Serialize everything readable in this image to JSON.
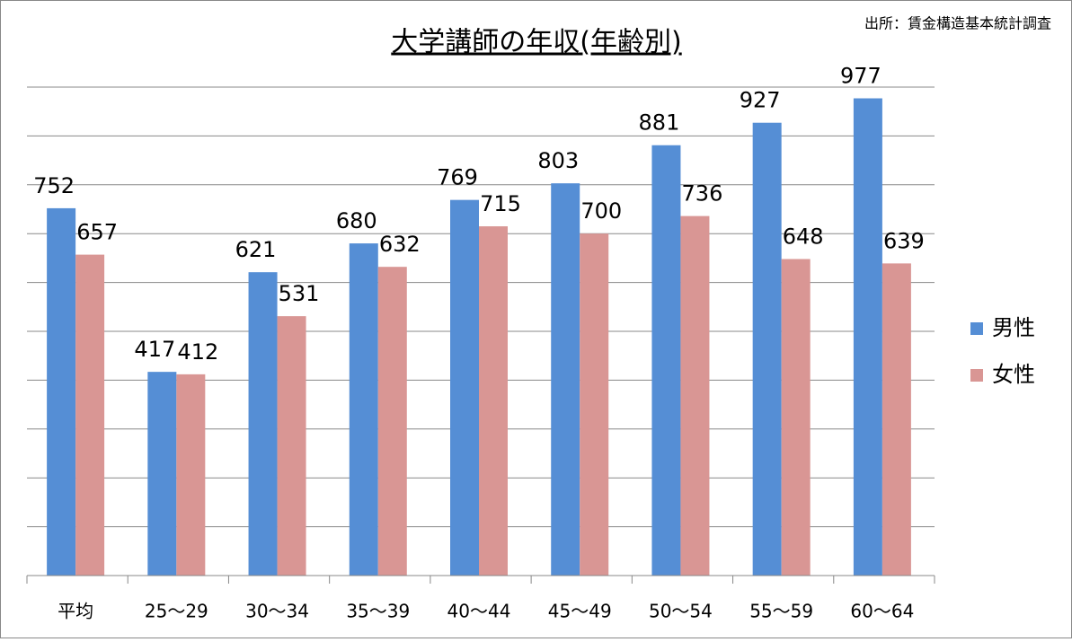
{
  "chart_data": {
    "type": "bar",
    "title": "大学講師の年収(年齢別)",
    "source": "出所：賃金構造基本統計調査",
    "categories": [
      "平均",
      "25〜29",
      "30〜34",
      "35〜39",
      "40〜44",
      "45〜49",
      "50〜54",
      "55〜59",
      "60〜64"
    ],
    "series": [
      {
        "name": "男性",
        "color": "#558ed5",
        "values": [
          752,
          417,
          621,
          680,
          769,
          803,
          881,
          927,
          977
        ]
      },
      {
        "name": "女性",
        "color": "#d99694",
        "values": [
          657,
          412,
          531,
          632,
          715,
          700,
          736,
          648,
          639
        ]
      }
    ],
    "ylim": [
      0,
      1000
    ],
    "yticks": [
      0,
      100,
      200,
      300,
      400,
      500,
      600,
      700,
      800,
      900,
      1000
    ],
    "grid": true,
    "legend": "right"
  }
}
